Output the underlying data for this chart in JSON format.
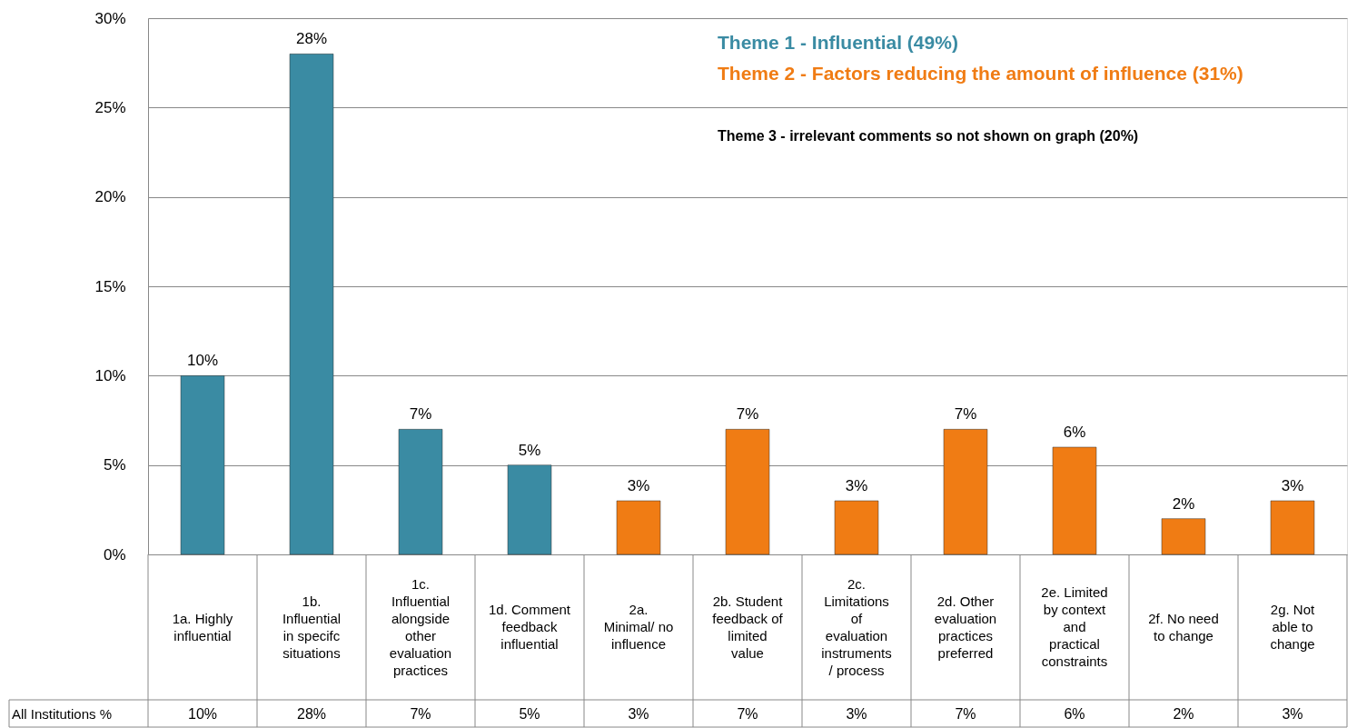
{
  "chart_data": {
    "type": "bar",
    "categories": [
      "1a. Highly influential",
      "1b. Influential in specifc situations",
      "1c. Influential alongside other evaluation practices",
      "1d. Comment feedback influential",
      "2a. Minimal/ no influence",
      "2b. Student feedback of limited value",
      "2c. Limitations of evaluation instruments / process",
      "2d. Other evaluation practices preferred",
      "2e. Limited by context and practical constraints",
      "2f. No need to change",
      "2g. Not able to change"
    ],
    "series": [
      {
        "name": "Theme 1 - Influential (49%)",
        "color": "#3a8ba3",
        "values": [
          10,
          28,
          7,
          5,
          null,
          null,
          null,
          null,
          null,
          null,
          null
        ],
        "value_labels": [
          "10%",
          "28%",
          "7%",
          "5%",
          null,
          null,
          null,
          null,
          null,
          null,
          null
        ]
      },
      {
        "name": "Theme 2 - Factors reducing the amount of influence (31%)",
        "color": "#f07c14",
        "values": [
          null,
          null,
          null,
          null,
          3,
          7,
          3,
          7,
          6,
          2,
          3
        ],
        "value_labels": [
          null,
          null,
          null,
          null,
          "3%",
          "7%",
          "3%",
          "7%",
          "6%",
          "2%",
          "3%"
        ]
      }
    ],
    "ylim": [
      0,
      30
    ],
    "yticks": [
      {
        "value": 0,
        "label": "0%"
      },
      {
        "value": 5,
        "label": "5%"
      },
      {
        "value": 10,
        "label": "10%"
      },
      {
        "value": 15,
        "label": "15%"
      },
      {
        "value": 20,
        "label": "20%"
      },
      {
        "value": 25,
        "label": "25%"
      },
      {
        "value": 30,
        "label": "30%"
      }
    ],
    "grid": "y",
    "legend": "top right",
    "annotations": [
      "Theme 3 - irrelevant comments so not shown on graph (20%)",
      "All Institutions %"
    ]
  }
}
